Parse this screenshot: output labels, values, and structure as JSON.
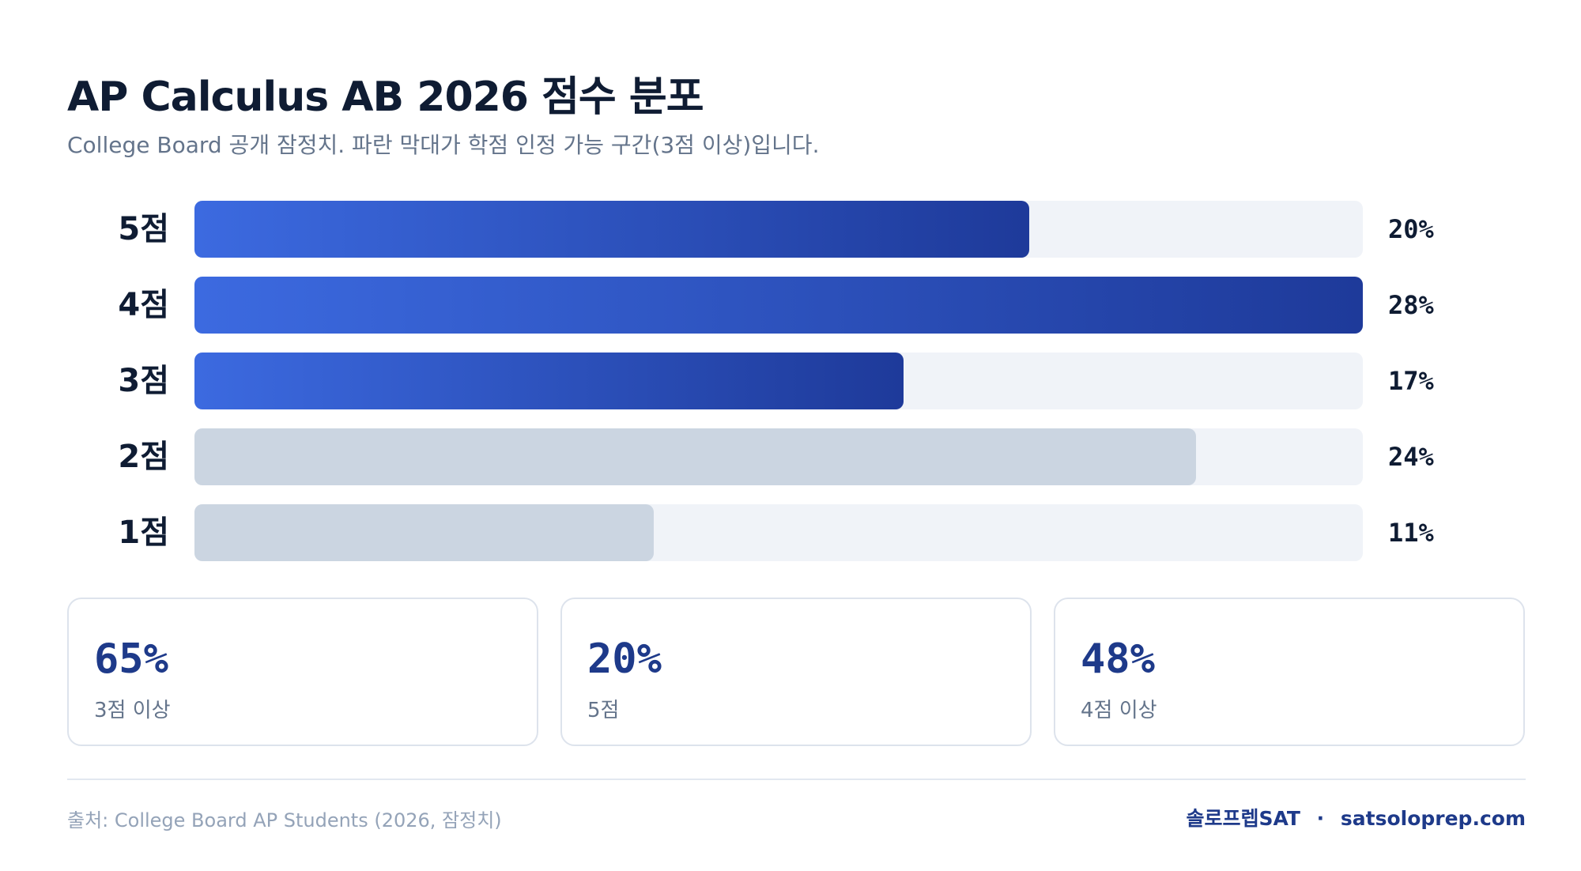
{
  "header": {
    "title": "AP Calculus AB 2026 점수 분포",
    "subtitle": "College Board 공개 잠정치. 파란 막대가 학점 인정 가능 구간(3점 이상)입니다."
  },
  "chart_data": {
    "type": "bar",
    "orientation": "horizontal",
    "categories": [
      "5점",
      "4점",
      "3점",
      "2점",
      "1점"
    ],
    "values": [
      20,
      28,
      17,
      24,
      11
    ],
    "value_labels": [
      "20%",
      "28%",
      "17%",
      "24%",
      "11%"
    ],
    "unit": "%",
    "xlim": [
      0,
      28
    ],
    "credit_flags": [
      true,
      true,
      true,
      false,
      false
    ],
    "colors": {
      "credit_start": "#3c6ae0",
      "credit_end": "#1e3a9a",
      "no_credit": "#cbd5e1",
      "track": "#f0f3f8"
    },
    "grid": false,
    "legend": "none"
  },
  "stats": [
    {
      "value": "65%",
      "label": "3점 이상"
    },
    {
      "value": "20%",
      "label": "5점"
    },
    {
      "value": "48%",
      "label": "4점 이상"
    }
  ],
  "footer": {
    "source": "출처: College Board AP Students (2026, 잠정치)",
    "brand_name": "솔로프렙SAT",
    "separator": "·",
    "brand_url": "satsoloprep.com"
  }
}
